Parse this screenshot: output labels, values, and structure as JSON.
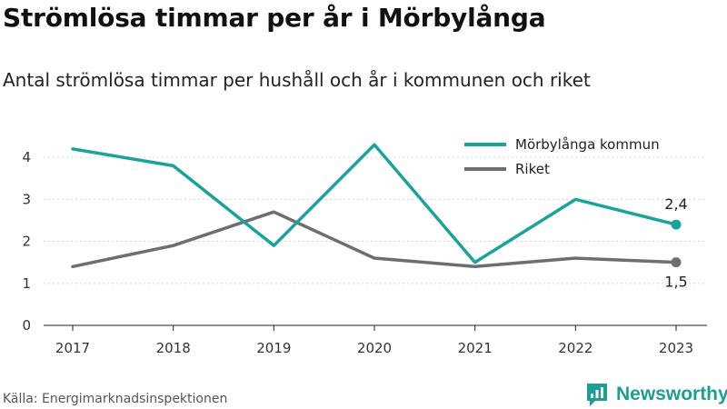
{
  "header": {
    "title": "Strömlösa timmar per år i Mörbylånga",
    "subtitle": "Antal strömlösa timmar per hushåll och år i kommunen och riket"
  },
  "footer": {
    "source": "Källa: Energimarknadsinspektionen",
    "brand": "Newsworthy"
  },
  "colors": {
    "kommun": "#1aa39a",
    "riket": "#6d6d72",
    "grid": "#d6d6d6",
    "brand": "#1d9d95"
  },
  "icons": {
    "logo": "newsworthy-logo-icon"
  },
  "chart_data": {
    "type": "line",
    "title": "Strömlösa timmar per år i Mörbylånga",
    "subtitle": "Antal strömlösa timmar per hushåll och år i kommunen och riket",
    "xlabel": "",
    "ylabel": "",
    "categories": [
      "2017",
      "2018",
      "2019",
      "2020",
      "2021",
      "2022",
      "2023"
    ],
    "yticks": [
      "0",
      "1",
      "2",
      "3",
      "4"
    ],
    "ylim": [
      0,
      4.5
    ],
    "grid": "horizontal",
    "legend_position": "top-right",
    "series": [
      {
        "name": "Mörbylånga kommun",
        "color": "#1aa39a",
        "values": [
          4.2,
          3.8,
          1.9,
          4.3,
          1.5,
          3.0,
          2.4
        ],
        "last_label": "2,4"
      },
      {
        "name": "Riket",
        "color": "#6d6d72",
        "values": [
          1.4,
          1.9,
          2.7,
          1.6,
          1.4,
          1.6,
          1.5
        ],
        "last_label": "1,5"
      }
    ]
  }
}
